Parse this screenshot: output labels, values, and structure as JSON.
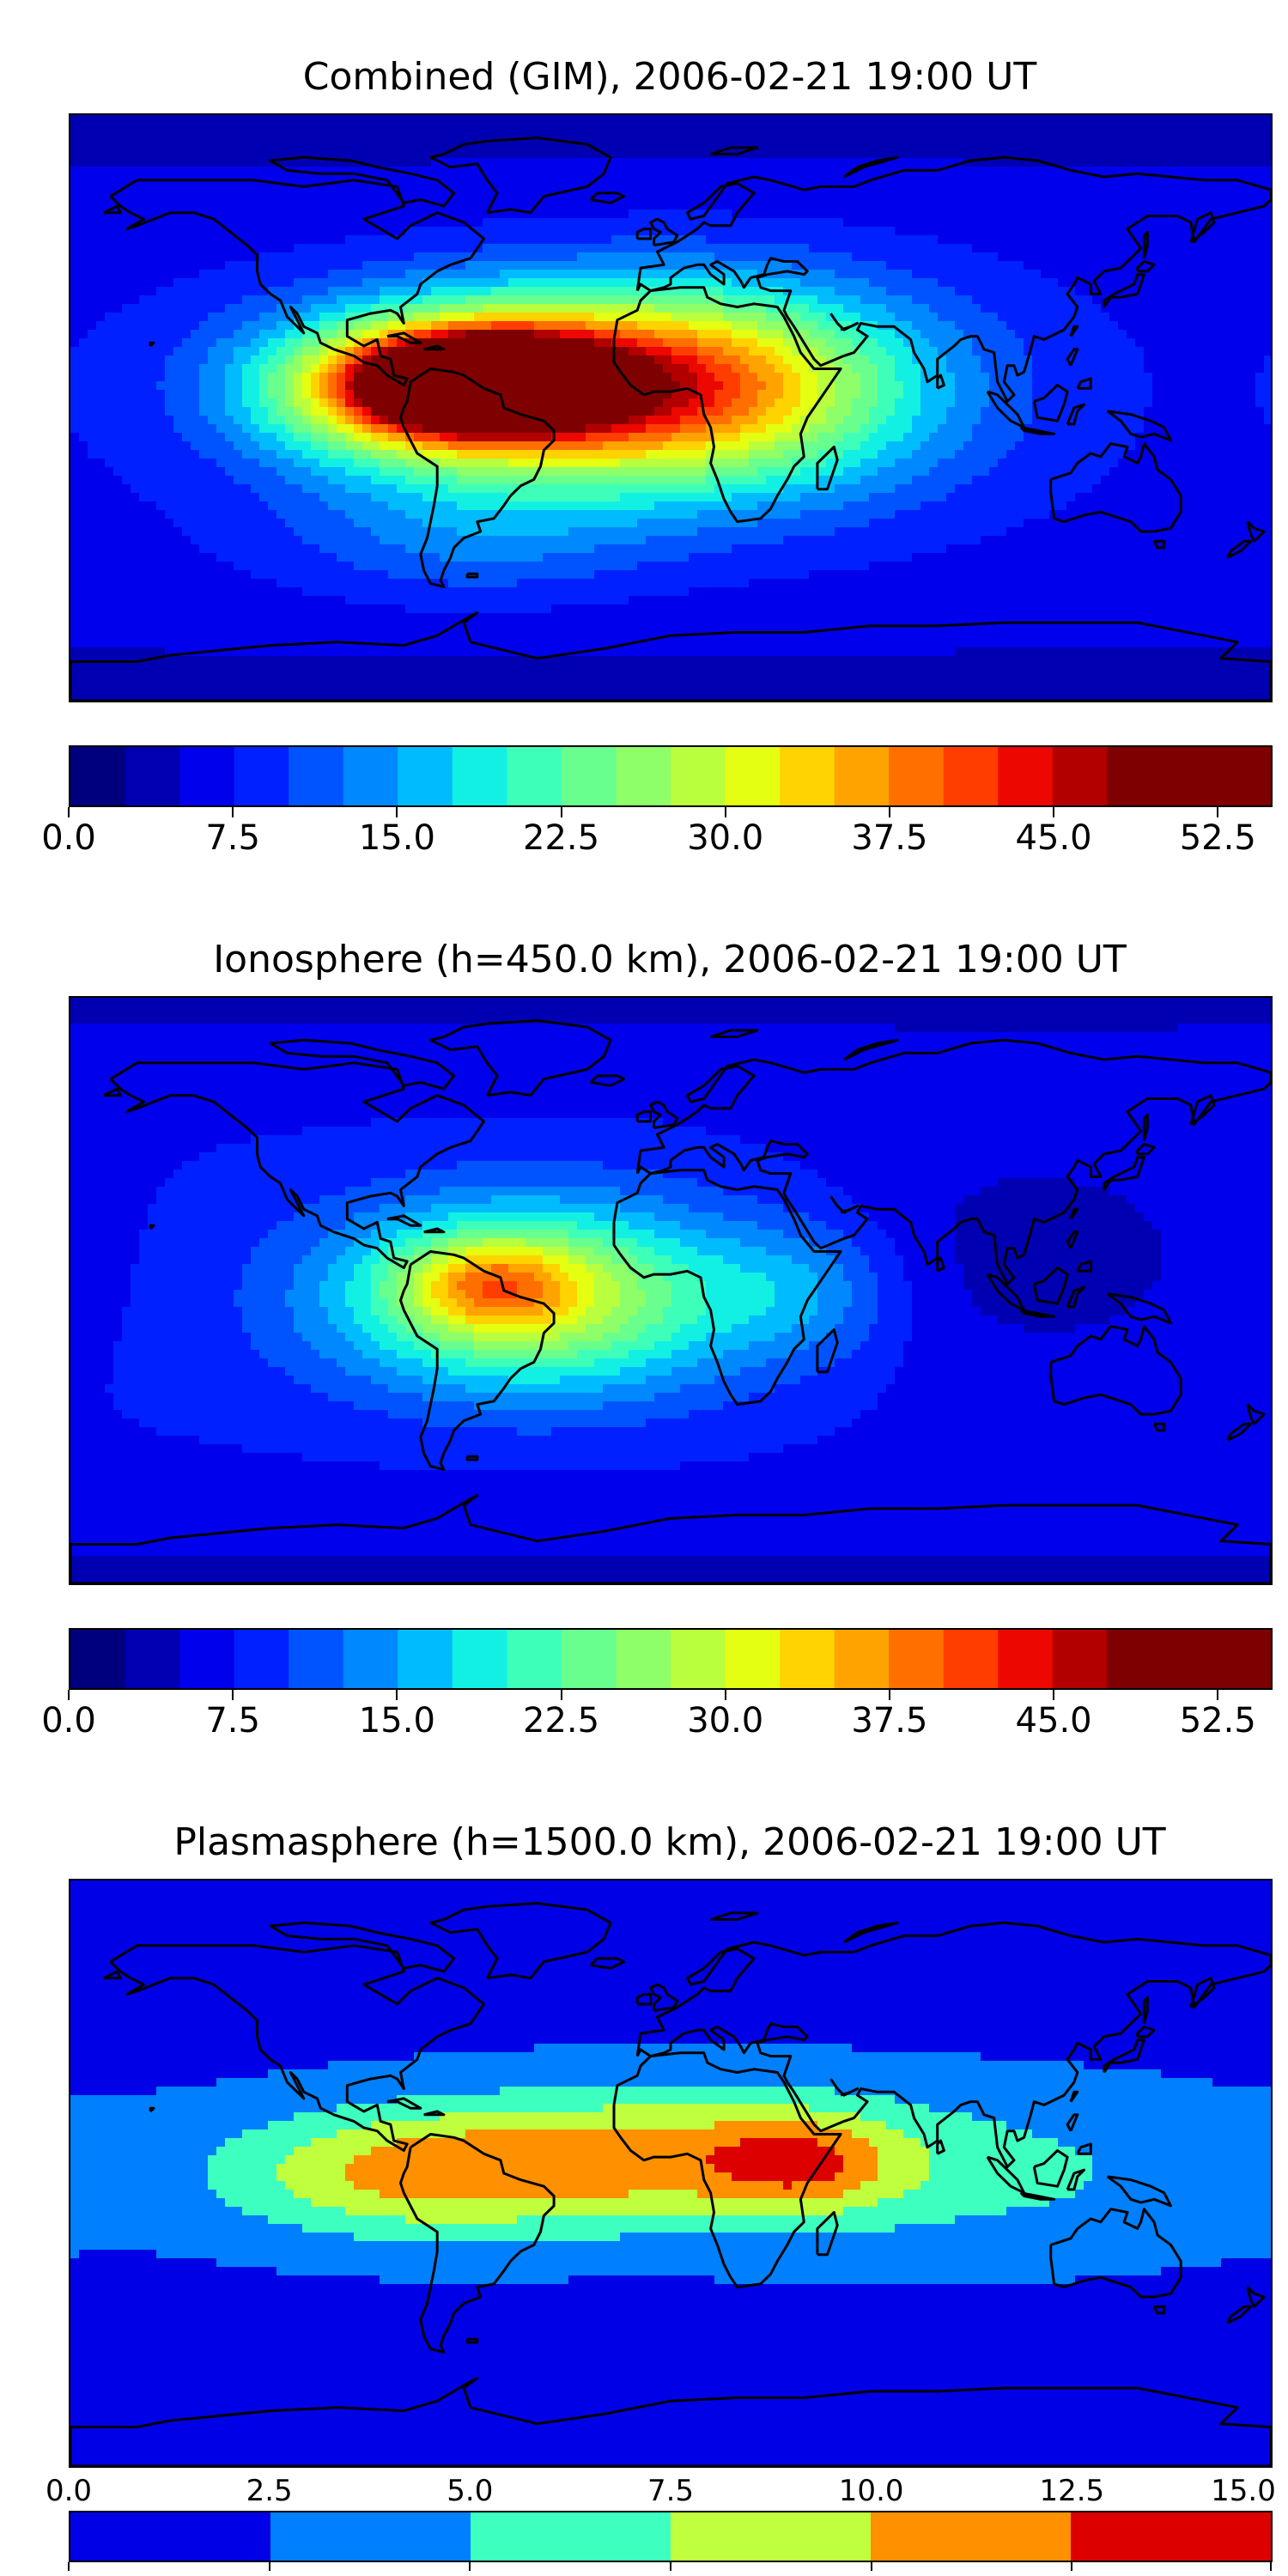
{
  "panels": [
    {
      "id": "combined",
      "title": "Combined (GIM), 2006-02-21 19:00 UT",
      "colorbar": {
        "min": 0,
        "max": 55,
        "step": 2.5,
        "tick_labels": [
          "0.0",
          "7.5",
          "15.0",
          "22.5",
          "30.0",
          "37.5",
          "45.0",
          "52.5"
        ],
        "tick_values": [
          0,
          7.5,
          15,
          22.5,
          30,
          37.5,
          45,
          52.5
        ]
      },
      "fields": [
        {
          "lon": -30,
          "lat": 7,
          "value": 34,
          "sx": 52,
          "sy": 20
        },
        {
          "lon": -55,
          "lat": 8,
          "value": 44,
          "sx": 22,
          "sy": 9
        },
        {
          "lon": -80,
          "lat": 6,
          "value": 18,
          "sx": 30,
          "sy": 14
        },
        {
          "lon": 25,
          "lat": 5,
          "value": 12,
          "sx": 45,
          "sy": 25
        },
        {
          "lon": -60,
          "lat": -40,
          "value": 6,
          "sx": 40,
          "sy": 15
        }
      ],
      "base_value": 7
    },
    {
      "id": "ionosphere",
      "title": "Ionosphere  (h=450.0 km), 2006-02-21 19:00 UT",
      "colorbar": {
        "min": 0,
        "max": 55,
        "step": 2.5,
        "tick_labels": [
          "0.0",
          "7.5",
          "15.0",
          "22.5",
          "30.0",
          "37.5",
          "45.0",
          "52.5"
        ],
        "tick_values": [
          0,
          7.5,
          15,
          22.5,
          30,
          37.5,
          45,
          52.5
        ]
      },
      "fields": [
        {
          "lon": -40,
          "lat": -2,
          "value": 22,
          "sx": 42,
          "sy": 20
        },
        {
          "lon": -55,
          "lat": 2,
          "value": 12,
          "sx": 18,
          "sy": 10
        },
        {
          "lon": 40,
          "lat": 0,
          "value": 6,
          "sx": 20,
          "sy": 15
        },
        {
          "lon": 110,
          "lat": 10,
          "value": -4,
          "sx": 50,
          "sy": 30
        }
      ],
      "base_value": 8
    },
    {
      "id": "plasmasphere",
      "title": "Plasmasphere (h=1500.0 km), 2006-02-21 19:00 UT",
      "colorbar": {
        "min": 0,
        "max": 15,
        "step": 2.5,
        "tick_labels": [
          "0.0",
          "2.5",
          "5.0",
          "7.5",
          "10.0",
          "12.5",
          "15.0"
        ],
        "tick_values": [
          0,
          2.5,
          5,
          7.5,
          10,
          12.5,
          15
        ]
      },
      "fields": [
        {
          "lon": -80,
          "lat": 0,
          "value": 7.5,
          "sx": 40,
          "sy": 14
        },
        {
          "lon": 0,
          "lat": 5,
          "value": 8,
          "sx": 50,
          "sy": 15
        },
        {
          "lon": 40,
          "lat": 3,
          "value": 4.5,
          "sx": 18,
          "sy": 10
        },
        {
          "lon": 100,
          "lat": 0,
          "value": 3,
          "sx": 60,
          "sy": 18
        }
      ],
      "base_value": 2
    }
  ],
  "jet_colors": [
    "#00007f",
    "#0000b2",
    "#0000ec",
    "#0020ff",
    "#0054ff",
    "#0088ff",
    "#00bcff",
    "#12f0e4",
    "#3dffb9",
    "#68ff8e",
    "#8eff68",
    "#b9ff3d",
    "#e4ff12",
    "#ffd300",
    "#ffa300",
    "#ff6f00",
    "#ff3d00",
    "#ec0700",
    "#b20000",
    "#7f0000"
  ],
  "plasma_colors": [
    "#0000e6",
    "#0080ff",
    "#3dffc0",
    "#c0ff3d",
    "#ff9000",
    "#dd0000"
  ],
  "coastline_color": "#000000"
}
